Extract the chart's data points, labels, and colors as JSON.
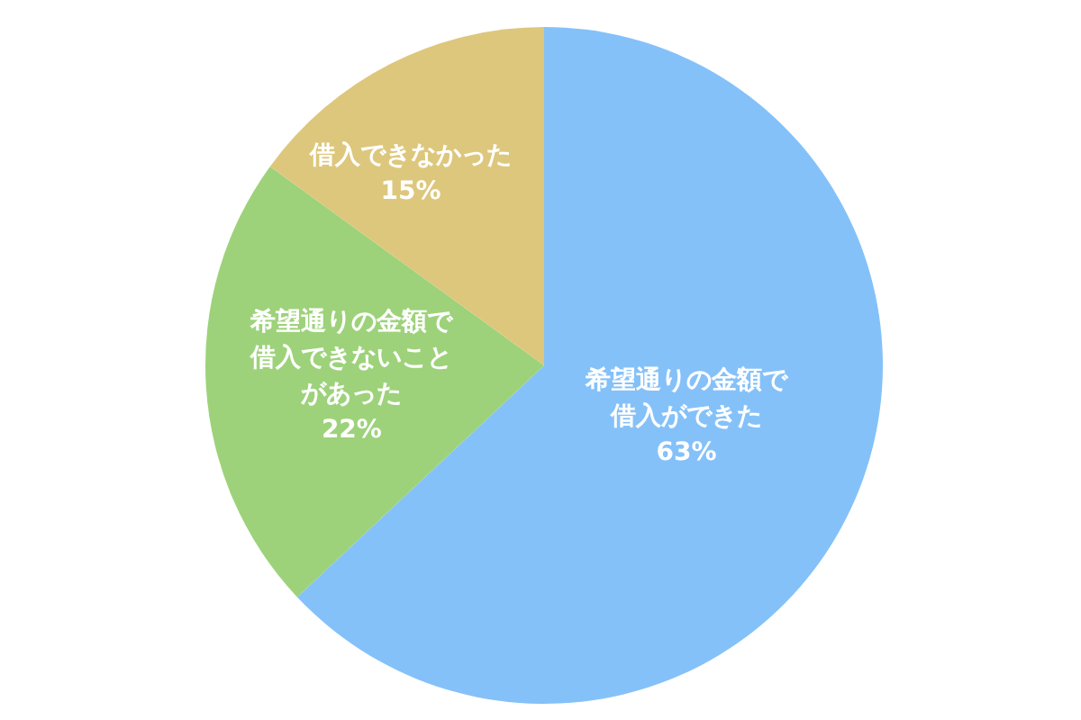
{
  "chart_data": {
    "type": "pie",
    "categories": [
      "希望通りの金額で借入ができた",
      "希望通りの金額で借入できないことがあった",
      "借入できなかった"
    ],
    "values": [
      63,
      22,
      15
    ],
    "value_labels": [
      "63%",
      "22%",
      "15%"
    ],
    "colors": [
      "#85c1f9",
      "#9dd27a",
      "#ddc77c"
    ],
    "legend": false
  }
}
